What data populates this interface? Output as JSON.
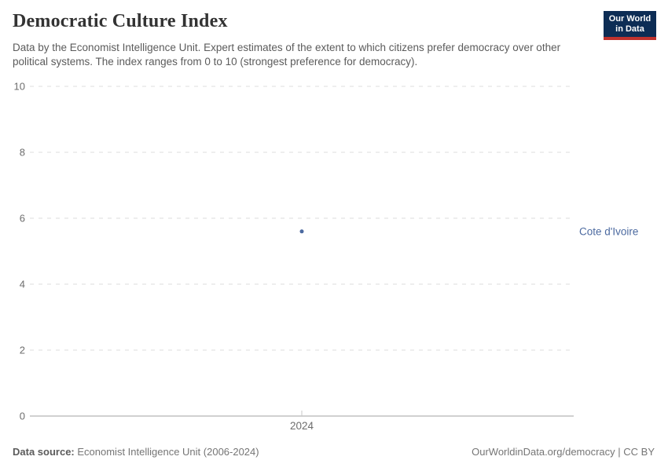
{
  "header": {
    "title": "Democratic Culture Index",
    "subtitle": "Data by the Economist Intelligence Unit. Expert estimates of the extent to which citizens prefer democracy over other political systems. The index ranges from 0 to 10 (strongest preference for democracy).",
    "logo": {
      "line1": "Our World",
      "line2": "in Data",
      "bg_color": "#0d2d55",
      "bar_color": "#c0322e"
    }
  },
  "chart_data": {
    "type": "scatter",
    "title": "Democratic Culture Index",
    "x": [
      2024
    ],
    "series": [
      {
        "name": "Cote d'Ivoire",
        "values": [
          5.6
        ],
        "color": "#4c6aa0"
      }
    ],
    "xlabel": "",
    "ylabel": "",
    "ylim": [
      0,
      10
    ],
    "yticks": [
      0,
      2,
      4,
      6,
      8,
      10
    ],
    "xticks": [
      "2024"
    ],
    "grid": "horizontal-dashed",
    "legend": "entity-label-right",
    "entity_label": "Cote d'Ivoire"
  },
  "chart_style": {
    "gridline_color": "#dcdcdc",
    "axis_line_color": "#a0a0a0",
    "tick_label_color": "#6d6d6d"
  },
  "footer": {
    "source_label": "Data source:",
    "source_text": " Economist Intelligence Unit (2006-2024)",
    "right_text": "OurWorldinData.org/democracy | CC BY"
  }
}
